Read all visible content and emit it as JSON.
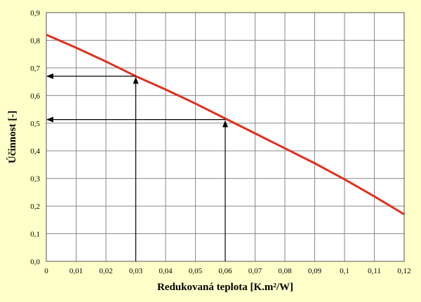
{
  "chart_data": {
    "type": "line",
    "title": "",
    "xlabel": "Redukovaná teplota [K.m²/W]",
    "ylabel": "Účinnost [-]",
    "xlim": [
      0,
      0.12
    ],
    "ylim": [
      0,
      0.9
    ],
    "x_ticks": [
      "0",
      "0,01",
      "0,02",
      "0,03",
      "0,04",
      "0,05",
      "0,06",
      "0,07",
      "0,08",
      "0,09",
      "0,1",
      "0,11",
      "0,12"
    ],
    "y_ticks": [
      "0,0",
      "0,1",
      "0,2",
      "0,3",
      "0,4",
      "0,5",
      "0,6",
      "0,7",
      "0,8",
      "0,9"
    ],
    "grid": true,
    "series": [
      {
        "color": "#E0301E",
        "x": [
          0,
          0.01,
          0.02,
          0.03,
          0.04,
          0.05,
          0.06,
          0.07,
          0.08,
          0.09,
          0.1,
          0.11,
          0.12
        ],
        "y": [
          0.82,
          0.773,
          0.723,
          0.67,
          0.622,
          0.571,
          0.517,
          0.463,
          0.409,
          0.355,
          0.297,
          0.235,
          0.17
        ]
      }
    ],
    "annotations": [
      {
        "type": "arrow-pair",
        "x": 0.03,
        "y": 0.67
      },
      {
        "type": "arrow-pair",
        "x": 0.06,
        "y": 0.513
      }
    ]
  }
}
